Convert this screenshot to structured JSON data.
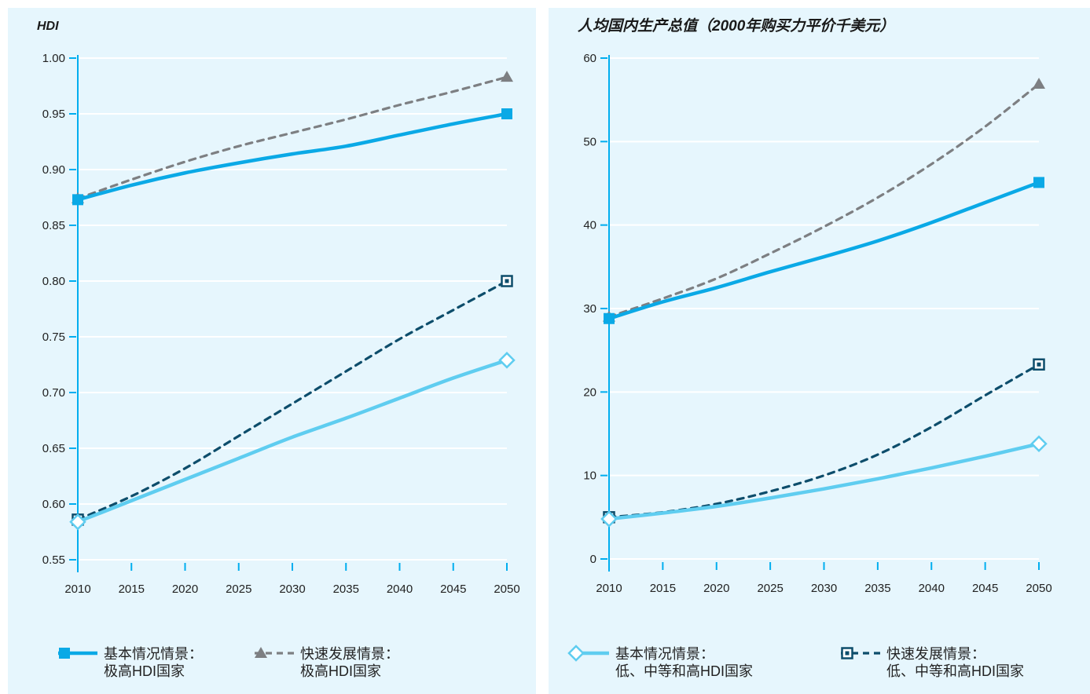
{
  "chart_data": [
    {
      "type": "line",
      "title": "HDI",
      "x": [
        2010,
        2015,
        2020,
        2025,
        2030,
        2035,
        2040,
        2045,
        2050
      ],
      "ylim": [
        0.55,
        1.0
      ],
      "yticks": [
        "0.55",
        "0.60",
        "0.65",
        "0.70",
        "0.75",
        "0.80",
        "0.85",
        "0.90",
        "0.95",
        "1.00"
      ],
      "xticks": [
        "2010",
        "2015",
        "2020",
        "2025",
        "2030",
        "2035",
        "2040",
        "2045",
        "2050"
      ],
      "series": [
        {
          "key": "vh_base",
          "name": "基本情况情景：极高HDI国家",
          "values": [
            0.873,
            0.886,
            0.897,
            0.906,
            0.914,
            0.921,
            0.931,
            0.941,
            0.95
          ]
        },
        {
          "key": "vh_fast",
          "name": "快速发展情景：极高HDI国家",
          "values": [
            0.874,
            0.891,
            0.907,
            0.921,
            0.933,
            0.945,
            0.958,
            0.97,
            0.983
          ]
        },
        {
          "key": "lmh_base",
          "name": "基本情况情景：低、中等和高HDI国家",
          "values": [
            0.584,
            0.603,
            0.622,
            0.641,
            0.66,
            0.677,
            0.695,
            0.713,
            0.729
          ]
        },
        {
          "key": "lmh_fast",
          "name": "快速发展情景：低、中等和高HDI国家",
          "values": [
            0.586,
            0.607,
            0.632,
            0.661,
            0.69,
            0.719,
            0.748,
            0.774,
            0.8
          ]
        }
      ]
    },
    {
      "type": "line",
      "title": "人均国内生产总值（2000年购买力平价千美元）",
      "x": [
        2010,
        2015,
        2020,
        2025,
        2030,
        2035,
        2040,
        2045,
        2050
      ],
      "ylim": [
        0,
        60
      ],
      "yticks": [
        "0",
        "10",
        "20",
        "30",
        "40",
        "50",
        "60"
      ],
      "xticks": [
        "2010",
        "2015",
        "2020",
        "2025",
        "2030",
        "2035",
        "2040",
        "2045",
        "2050"
      ],
      "series": [
        {
          "key": "vh_base",
          "name": "基本情况情景：极高HDI国家",
          "values": [
            28.8,
            30.8,
            32.5,
            34.4,
            36.2,
            38.1,
            40.3,
            42.7,
            45.1
          ]
        },
        {
          "key": "vh_fast",
          "name": "快速发展情景：极高HDI国家",
          "values": [
            29.0,
            31.2,
            33.6,
            36.6,
            39.8,
            43.3,
            47.3,
            51.8,
            56.9
          ]
        },
        {
          "key": "lmh_base",
          "name": "基本情况情景：低、中等和高HDI国家",
          "values": [
            4.8,
            5.5,
            6.3,
            7.3,
            8.4,
            9.6,
            10.9,
            12.3,
            13.8
          ]
        },
        {
          "key": "lmh_fast",
          "name": "快速发展情景：低、中等和高HDI国家",
          "values": [
            5.0,
            5.6,
            6.6,
            8.1,
            10.0,
            12.5,
            15.8,
            19.6,
            23.3
          ]
        }
      ]
    }
  ],
  "legend": [
    {
      "key": "vh_base",
      "line1": "基本情况情景：",
      "line2": "极高HDI国家"
    },
    {
      "key": "vh_fast",
      "line1": "快速发展情景：",
      "line2": "极高HDI国家"
    },
    {
      "key": "lmh_base",
      "line1": "基本情况情景：",
      "line2": "低、中等和高HDI国家"
    },
    {
      "key": "lmh_fast",
      "line1": "快速发展情景：",
      "line2": "低、中等和高HDI国家"
    }
  ],
  "colors": {
    "panel_bg": "#e6f6fd",
    "axis": "#00aeef",
    "vh_base": "#0aa9e6",
    "vh_fast": "#7d7f82",
    "lmh_base": "#5fcdf0",
    "lmh_fast": "#0d4d6b"
  }
}
